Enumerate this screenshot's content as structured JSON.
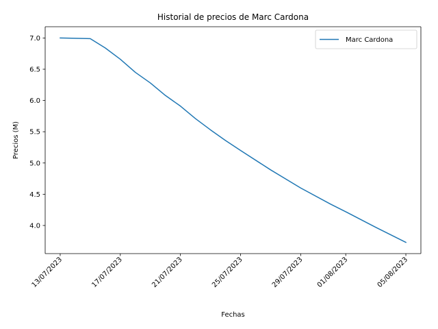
{
  "chart_data": {
    "type": "line",
    "title": "Historial de precios de Marc Cardona",
    "xlabel": "Fechas",
    "ylabel": "Precios (M)",
    "x_ticks": [
      "13/07/2023",
      "17/07/2023",
      "21/07/2023",
      "25/07/2023",
      "29/07/2023",
      "01/08/2023",
      "05/08/2023"
    ],
    "y_ticks": [
      "4.0",
      "4.5",
      "5.0",
      "5.5",
      "6.0",
      "6.5",
      "7.0"
    ],
    "ylim": [
      3.55,
      7.18
    ],
    "xlim": [
      "12/07/2023",
      "06/08/2023"
    ],
    "legend": {
      "placement": "top-right"
    },
    "grid": false,
    "series": [
      {
        "name": "Marc Cardona",
        "color": "#1f77b4",
        "points": [
          {
            "x": "13/07/2023",
            "y": 7.0
          },
          {
            "x": "15/07/2023",
            "y": 6.99
          },
          {
            "x": "16/07/2023",
            "y": 6.84
          },
          {
            "x": "17/07/2023",
            "y": 6.66
          },
          {
            "x": "18/07/2023",
            "y": 6.45
          },
          {
            "x": "19/07/2023",
            "y": 6.28
          },
          {
            "x": "20/07/2023",
            "y": 6.08
          },
          {
            "x": "21/07/2023",
            "y": 5.91
          },
          {
            "x": "22/07/2023",
            "y": 5.71
          },
          {
            "x": "23/07/2023",
            "y": 5.53
          },
          {
            "x": "24/07/2023",
            "y": 5.36
          },
          {
            "x": "25/07/2023",
            "y": 5.2
          },
          {
            "x": "27/07/2023",
            "y": 4.89
          },
          {
            "x": "29/07/2023",
            "y": 4.6
          },
          {
            "x": "31/07/2023",
            "y": 4.34
          },
          {
            "x": "01/08/2023",
            "y": 4.22
          },
          {
            "x": "03/08/2023",
            "y": 3.97
          },
          {
            "x": "05/08/2023",
            "y": 3.73
          }
        ]
      }
    ]
  }
}
